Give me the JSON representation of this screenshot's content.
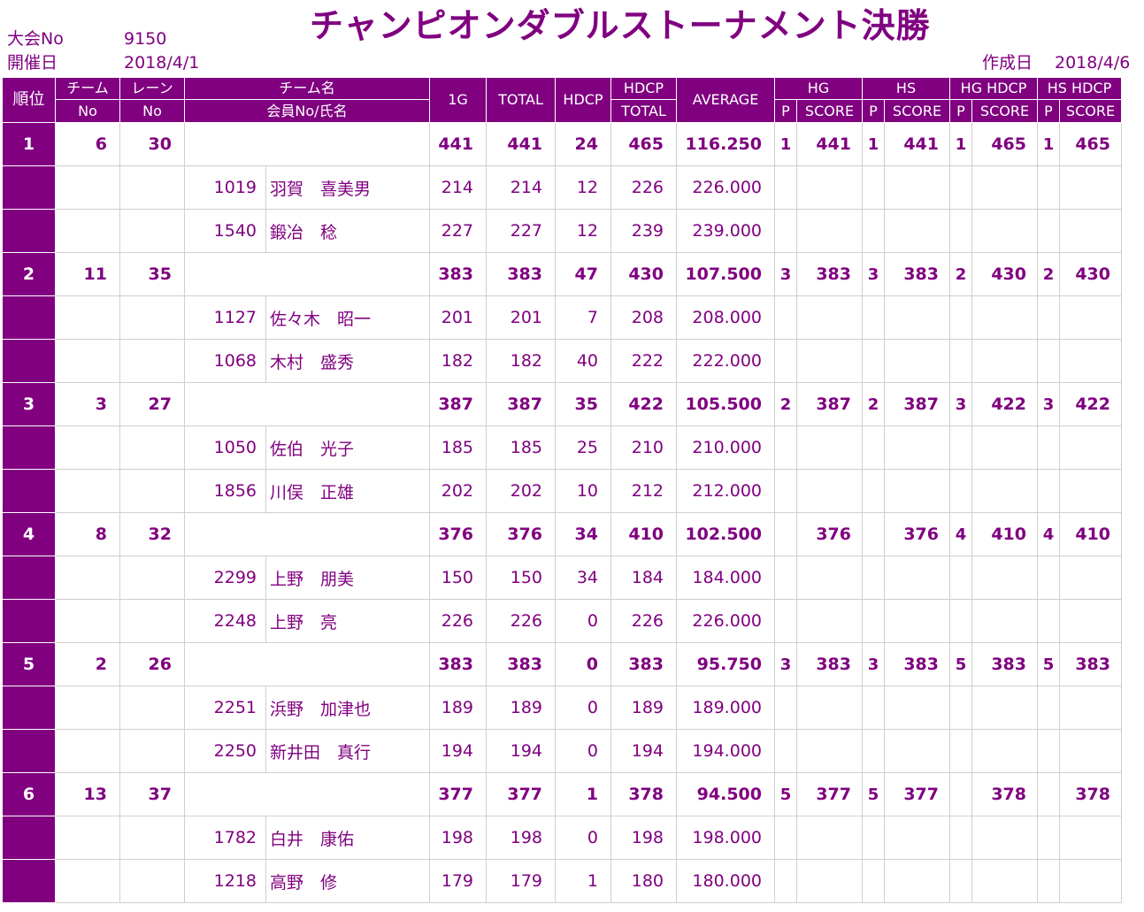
{
  "header": {
    "tournament_no_label": "大会No",
    "tournament_no": "9150",
    "date_label": "開催日",
    "date": "2018/4/1",
    "title": "チャンピオンダブルストーナメント決勝",
    "created_label": "作成日",
    "created_date": "2018/4/6"
  },
  "columns": {
    "rank": "順位",
    "team_no_1": "チーム",
    "team_no_2": "No",
    "lane_no_1": "レーン",
    "lane_no_2": "No",
    "name_1": "チーム名",
    "name_2": "会員No/氏名",
    "g1": "1G",
    "total": "TOTAL",
    "hdcp": "HDCP",
    "hdcp_total_1": "HDCP",
    "hdcp_total_2": "TOTAL",
    "average": "AVERAGE",
    "hg": "HG",
    "hs": "HS",
    "hg_hdcp": "HG HDCP",
    "hs_hdcp": "HS HDCP",
    "p": "P",
    "score": "SCORE"
  },
  "teams": [
    {
      "rank": "1",
      "team_no": "6",
      "lane_no": "30",
      "g1": "441",
      "total": "441",
      "hdcp": "24",
      "hdcp_total": "465",
      "average": "116.250",
      "hg_p": "1",
      "hg_score": "441",
      "hs_p": "1",
      "hs_score": "441",
      "hgh_p": "1",
      "hgh_score": "465",
      "hsh_p": "1",
      "hsh_score": "465",
      "members": [
        {
          "no": "1019",
          "name": "羽賀　喜美男",
          "g1": "214",
          "total": "214",
          "hdcp": "12",
          "hdcp_total": "226",
          "average": "226.000"
        },
        {
          "no": "1540",
          "name": "鍛冶　稔",
          "g1": "227",
          "total": "227",
          "hdcp": "12",
          "hdcp_total": "239",
          "average": "239.000"
        }
      ]
    },
    {
      "rank": "2",
      "team_no": "11",
      "lane_no": "35",
      "g1": "383",
      "total": "383",
      "hdcp": "47",
      "hdcp_total": "430",
      "average": "107.500",
      "hg_p": "3",
      "hg_score": "383",
      "hs_p": "3",
      "hs_score": "383",
      "hgh_p": "2",
      "hgh_score": "430",
      "hsh_p": "2",
      "hsh_score": "430",
      "members": [
        {
          "no": "1127",
          "name": "佐々木　昭一",
          "g1": "201",
          "total": "201",
          "hdcp": "7",
          "hdcp_total": "208",
          "average": "208.000"
        },
        {
          "no": "1068",
          "name": "木村　盛秀",
          "g1": "182",
          "total": "182",
          "hdcp": "40",
          "hdcp_total": "222",
          "average": "222.000"
        }
      ]
    },
    {
      "rank": "3",
      "team_no": "3",
      "lane_no": "27",
      "g1": "387",
      "total": "387",
      "hdcp": "35",
      "hdcp_total": "422",
      "average": "105.500",
      "hg_p": "2",
      "hg_score": "387",
      "hs_p": "2",
      "hs_score": "387",
      "hgh_p": "3",
      "hgh_score": "422",
      "hsh_p": "3",
      "hsh_score": "422",
      "members": [
        {
          "no": "1050",
          "name": "佐伯　光子",
          "g1": "185",
          "total": "185",
          "hdcp": "25",
          "hdcp_total": "210",
          "average": "210.000"
        },
        {
          "no": "1856",
          "name": "川俣　正雄",
          "g1": "202",
          "total": "202",
          "hdcp": "10",
          "hdcp_total": "212",
          "average": "212.000"
        }
      ]
    },
    {
      "rank": "4",
      "team_no": "8",
      "lane_no": "32",
      "g1": "376",
      "total": "376",
      "hdcp": "34",
      "hdcp_total": "410",
      "average": "102.500",
      "hg_p": "",
      "hg_score": "376",
      "hs_p": "",
      "hs_score": "376",
      "hgh_p": "4",
      "hgh_score": "410",
      "hsh_p": "4",
      "hsh_score": "410",
      "members": [
        {
          "no": "2299",
          "name": "上野　朋美",
          "g1": "150",
          "total": "150",
          "hdcp": "34",
          "hdcp_total": "184",
          "average": "184.000"
        },
        {
          "no": "2248",
          "name": "上野　亮",
          "g1": "226",
          "total": "226",
          "hdcp": "0",
          "hdcp_total": "226",
          "average": "226.000"
        }
      ]
    },
    {
      "rank": "5",
      "team_no": "2",
      "lane_no": "26",
      "g1": "383",
      "total": "383",
      "hdcp": "0",
      "hdcp_total": "383",
      "average": "95.750",
      "hg_p": "3",
      "hg_score": "383",
      "hs_p": "3",
      "hs_score": "383",
      "hgh_p": "5",
      "hgh_score": "383",
      "hsh_p": "5",
      "hsh_score": "383",
      "members": [
        {
          "no": "2251",
          "name": "浜野　加津也",
          "g1": "189",
          "total": "189",
          "hdcp": "0",
          "hdcp_total": "189",
          "average": "189.000"
        },
        {
          "no": "2250",
          "name": "新井田　真行",
          "g1": "194",
          "total": "194",
          "hdcp": "0",
          "hdcp_total": "194",
          "average": "194.000"
        }
      ]
    },
    {
      "rank": "6",
      "team_no": "13",
      "lane_no": "37",
      "g1": "377",
      "total": "377",
      "hdcp": "1",
      "hdcp_total": "378",
      "average": "94.500",
      "hg_p": "5",
      "hg_score": "377",
      "hs_p": "5",
      "hs_score": "377",
      "hgh_p": "",
      "hgh_score": "378",
      "hsh_p": "",
      "hsh_score": "378",
      "members": [
        {
          "no": "1782",
          "name": "白井　康佑",
          "g1": "198",
          "total": "198",
          "hdcp": "0",
          "hdcp_total": "198",
          "average": "198.000"
        },
        {
          "no": "1218",
          "name": "高野　修",
          "g1": "179",
          "total": "179",
          "hdcp": "1",
          "hdcp_total": "180",
          "average": "180.000"
        }
      ]
    }
  ]
}
